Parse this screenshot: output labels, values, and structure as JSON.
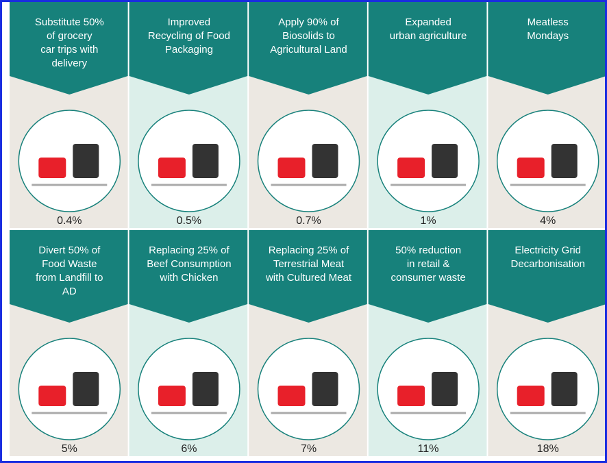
{
  "cards": [
    {
      "title": [
        "Substitute 50%",
        "of grocery",
        "car trips with",
        "delivery"
      ],
      "value": "0.4%"
    },
    {
      "title": [
        "Improved",
        "Recycling of Food",
        "Packaging"
      ],
      "value": "0.5%"
    },
    {
      "title": [
        "Apply 90% of",
        "Biosolids to",
        "Agricultural Land"
      ],
      "value": "0.7%"
    },
    {
      "title": [
        "Expanded",
        "urban agriculture"
      ],
      "value": "1%"
    },
    {
      "title": [
        "Meatless",
        "Mondays"
      ],
      "value": "4%"
    },
    {
      "title": [
        "Divert 50% of",
        "Food Waste",
        "from Landfill to",
        "AD"
      ],
      "value": "5%"
    },
    {
      "title": [
        "Replacing 25% of",
        "Beef Consumption",
        "with Chicken"
      ],
      "value": "6%"
    },
    {
      "title": [
        "Replacing 25% of",
        "Terrestrial Meat",
        "with Cultured Meat"
      ],
      "value": "7%"
    },
    {
      "title": [
        "50% reduction",
        "in retail &",
        "consumer waste"
      ],
      "value": "11%"
    },
    {
      "title": [
        "Electricity Grid",
        "Decarbonisation"
      ],
      "value": "18%"
    }
  ]
}
